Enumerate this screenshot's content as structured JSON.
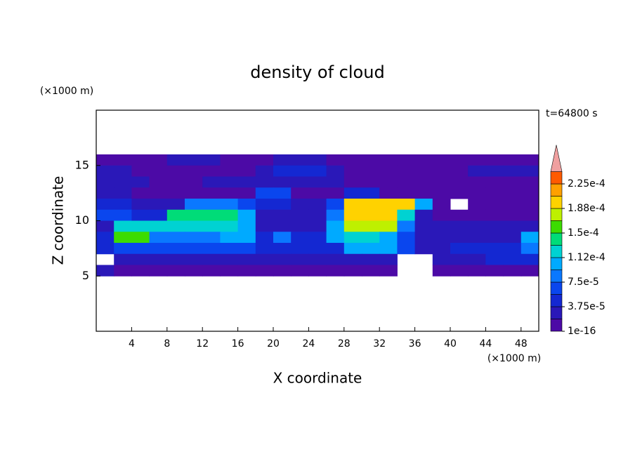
{
  "chart_data": {
    "type": "contour",
    "title": "density of cloud",
    "x_label": "X coordinate",
    "y_label": "Z coordinate",
    "x_unit": "(×1000 m)",
    "y_unit": "(×1000 m)",
    "annotation": "t=64800 s",
    "xlim": [
      0,
      50
    ],
    "ylim": [
      0,
      20
    ],
    "xticks": [
      4,
      8,
      12,
      16,
      20,
      24,
      28,
      32,
      36,
      40,
      44,
      48
    ],
    "yticks": [
      5,
      10,
      15
    ],
    "x": [
      1,
      3,
      5,
      7,
      9,
      11,
      13,
      15,
      17,
      19,
      21,
      23,
      25,
      27,
      29,
      31,
      33,
      35,
      37,
      39,
      41,
      43,
      45,
      47,
      49
    ],
    "z": [
      15.5,
      14.5,
      13.5,
      12.5,
      11.5,
      10.5,
      9.5,
      8.5,
      7.5,
      6.5,
      5.5
    ],
    "values": [
      [
        1e-05,
        1e-05,
        1e-05,
        1e-05,
        2e-05,
        2e-05,
        2e-05,
        1e-05,
        1e-05,
        1e-05,
        2e-05,
        2e-05,
        2e-05,
        1e-05,
        1e-05,
        1e-05,
        1e-05,
        1e-05,
        1e-05,
        1e-05,
        1e-05,
        1e-05,
        1e-05,
        1e-05,
        1e-05
      ],
      [
        3e-05,
        3e-05,
        1e-05,
        1e-05,
        1e-05,
        1e-05,
        1e-05,
        1e-05,
        1e-05,
        2e-05,
        4e-05,
        4e-05,
        4e-05,
        2e-05,
        1e-05,
        1e-05,
        1e-05,
        1e-05,
        1e-05,
        1e-05,
        1e-05,
        2e-05,
        2e-05,
        2e-05,
        2e-05
      ],
      [
        3e-05,
        3e-05,
        3e-05,
        1e-05,
        1e-05,
        1e-05,
        2.5e-05,
        2.5e-05,
        2.5e-05,
        2.5e-05,
        2.5e-05,
        2e-05,
        2e-05,
        2e-05,
        1e-05,
        1e-05,
        1e-05,
        1e-05,
        1e-05,
        1e-05,
        1e-05,
        1e-05,
        1e-05,
        1e-05,
        1e-05
      ],
      [
        2e-05,
        2e-05,
        1e-05,
        1e-05,
        1e-05,
        1e-05,
        1e-05,
        1e-05,
        1e-05,
        6e-05,
        6e-05,
        1e-05,
        1e-05,
        1e-05,
        4e-05,
        4e-05,
        1e-05,
        1e-05,
        1e-05,
        1e-05,
        1e-05,
        1e-05,
        1e-05,
        1e-05,
        1e-05
      ],
      [
        5e-05,
        5e-05,
        3e-05,
        3e-05,
        3e-05,
        8e-05,
        8e-05,
        8e-05,
        6e-05,
        5e-05,
        5e-05,
        2e-05,
        2e-05,
        6e-05,
        0.00019,
        0.00019,
        0.00019,
        0.00019,
        0.0001,
        1e-05,
        null,
        1e-05,
        1e-05,
        1e-05,
        1e-05
      ],
      [
        6e-05,
        6e-05,
        5e-05,
        5e-05,
        0.00014,
        0.00014,
        0.00014,
        0.00014,
        0.0001,
        3e-05,
        3e-05,
        2e-05,
        2e-05,
        8e-05,
        0.000205,
        0.000205,
        0.000205,
        0.00012,
        3e-05,
        1e-05,
        1e-05,
        1e-05,
        1e-05,
        1e-05,
        1e-05
      ],
      [
        3e-05,
        0.00013,
        0.00013,
        0.00013,
        0.00013,
        0.00013,
        0.00013,
        0.00013,
        0.0001,
        3e-05,
        3e-05,
        3e-05,
        3e-05,
        0.00011,
        0.00017,
        0.00017,
        0.00017,
        8e-05,
        2e-05,
        2e-05,
        2e-05,
        2e-05,
        2e-05,
        2e-05,
        2e-05
      ],
      [
        4e-05,
        0.00016,
        0.00016,
        9e-05,
        9e-05,
        9e-05,
        9e-05,
        0.00011,
        0.00011,
        4e-05,
        8e-05,
        5e-05,
        5e-05,
        0.00011,
        0.00013,
        0.00013,
        0.0001,
        6e-05,
        2e-05,
        2e-05,
        2e-05,
        2e-05,
        2e-05,
        3e-05,
        0.0001
      ],
      [
        5e-05,
        6e-05,
        6e-05,
        6e-05,
        6e-05,
        6e-05,
        6e-05,
        6e-05,
        6e-05,
        5e-05,
        5e-05,
        5e-05,
        5e-05,
        5e-05,
        0.0001,
        0.0001,
        0.0001,
        6e-05,
        2e-05,
        2e-05,
        4e-05,
        4e-05,
        4e-05,
        4e-05,
        9e-05
      ],
      [
        null,
        3e-05,
        3e-05,
        3e-05,
        3e-05,
        3e-05,
        3e-05,
        3e-05,
        3e-05,
        3e-05,
        3e-05,
        3e-05,
        3e-05,
        3e-05,
        3e-05,
        3e-05,
        3e-05,
        null,
        null,
        2e-05,
        2e-05,
        2e-05,
        5e-05,
        5e-05,
        5e-05
      ],
      [
        2e-05,
        1.5e-05,
        1.5e-05,
        1.5e-05,
        1.5e-05,
        1.5e-05,
        1.5e-05,
        1.5e-05,
        1.5e-05,
        1.5e-05,
        1.5e-05,
        1.5e-05,
        1.5e-05,
        1.5e-05,
        1.5e-05,
        1.5e-05,
        1.5e-05,
        null,
        null,
        1.5e-05,
        1.5e-05,
        1.5e-05,
        1.5e-05,
        1.5e-05,
        1.5e-05
      ]
    ],
    "levels": [
      1e-16,
      1.875e-05,
      3.75e-05,
      5.625e-05,
      7.5e-05,
      9.375e-05,
      0.0001125,
      0.00013125,
      0.00015,
      0.00016875,
      0.0001875,
      0.00020625,
      0.000225
    ],
    "colors": [
      "#4c0aa6",
      "#2a18b8",
      "#1428d2",
      "#0a46ee",
      "#0a78ff",
      "#00aaff",
      "#00d2d2",
      "#00dc78",
      "#3cdc00",
      "#bef000",
      "#ffd200",
      "#ffa000",
      "#ff5a00"
    ],
    "over_color": "#f0a0a0",
    "colorbar_ticks": [
      {
        "value": 1e-16,
        "label": "1e-16"
      },
      {
        "value": 3.75e-05,
        "label": "3.75e-5"
      },
      {
        "value": 7.5e-05,
        "label": "7.5e-5"
      },
      {
        "value": 0.0001125,
        "label": "1.12e-4"
      },
      {
        "value": 0.00015,
        "label": "1.5e-4"
      },
      {
        "value": 0.0001875,
        "label": "1.88e-4"
      },
      {
        "value": 0.000225,
        "label": "2.25e-4"
      }
    ]
  }
}
